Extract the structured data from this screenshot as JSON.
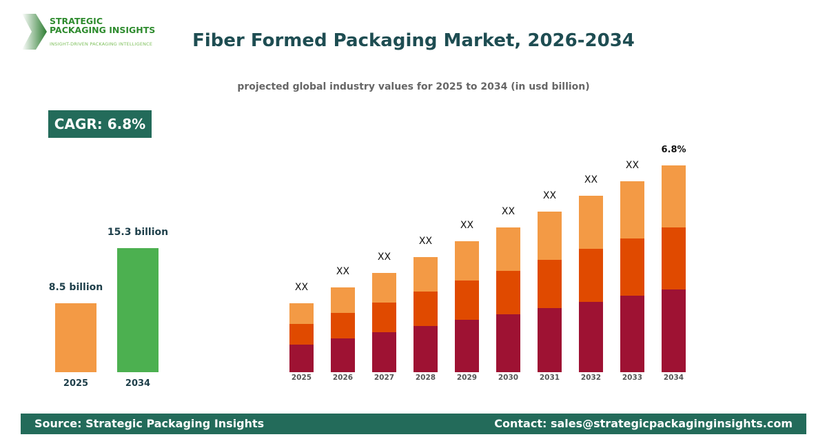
{
  "logo": {
    "name_line1": "STRATEGIC",
    "name_line2": "PACKAGING INSIGHTS",
    "tagline": "INSIGHT-DRIVEN PACKAGING INTELLIGENCE"
  },
  "header": {
    "title": "Fiber Formed Packaging Market, 2026-2034",
    "subtitle": "projected global industry values for 2025 to 2034 (in usd billion)"
  },
  "cagr_badge": "CAGR: 6.8%",
  "colors": {
    "teal": "#236B5A",
    "green": "#4CB050",
    "light_orange": "#F39A45",
    "orange": "#E04A00",
    "crimson": "#9E1233"
  },
  "chart_data": [
    {
      "type": "bar",
      "categories": [
        "2025",
        "2034"
      ],
      "values": [
        8.5,
        15.3
      ],
      "data_labels": [
        "8.5 billion",
        "15.3 billion"
      ],
      "colors": [
        "#F39A45",
        "#4CB050"
      ]
    },
    {
      "type": "bar",
      "stacked": true,
      "categories": [
        "2025",
        "2026",
        "2027",
        "2028",
        "2029",
        "2030",
        "2031",
        "2032",
        "2033",
        "2034"
      ],
      "series": [
        {
          "color": "#9E1233",
          "values": [
            40,
            49,
            58,
            67,
            76,
            84,
            93,
            102,
            111,
            120
          ]
        },
        {
          "color": "#E04A00",
          "values": [
            30,
            37,
            43,
            50,
            57,
            63,
            70,
            77,
            83,
            90
          ]
        },
        {
          "color": "#F39A45",
          "values": [
            30,
            37,
            43,
            50,
            57,
            63,
            70,
            77,
            83,
            90
          ]
        }
      ],
      "data_labels": [
        "XX",
        "XX",
        "XX",
        "XX",
        "XX",
        "XX",
        "XX",
        "XX",
        "XX",
        "6.8%"
      ],
      "axes": "none",
      "grid": false
    }
  ],
  "footer": {
    "source": "Source: Strategic Packaging Insights",
    "contact": "Contact: sales@strategicpackaginginsights.com"
  }
}
